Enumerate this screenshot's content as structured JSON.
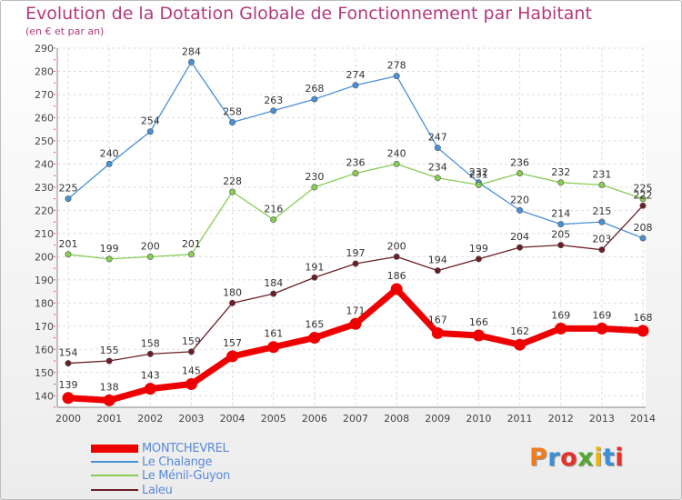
{
  "title": "Evolution de la Dotation Globale de Fonctionnement par Habitant",
  "subtitle": "(en € et par an)",
  "logo": {
    "text": "Proxiti",
    "colors": [
      "#f07c1e",
      "#3a8fd6",
      "#e3322c",
      "#54a832",
      "#f0b400",
      "#3a8fd6",
      "#e3322c"
    ]
  },
  "chart_data": {
    "type": "line",
    "x": [
      "2000",
      "2001",
      "2002",
      "2003",
      "2004",
      "2005",
      "2006",
      "2007",
      "2008",
      "2009",
      "2010",
      "2011",
      "2012",
      "2013",
      "2014"
    ],
    "ylim": [
      135,
      290
    ],
    "yticks": [
      140,
      150,
      160,
      170,
      180,
      190,
      200,
      210,
      220,
      230,
      240,
      250,
      260,
      270,
      280,
      290
    ],
    "grid": true,
    "legend_position": "bottom-left",
    "series": [
      {
        "name": "MONTCHEVREL",
        "color": "#ee0000",
        "values": [
          139,
          138,
          143,
          145,
          157,
          161,
          165,
          171,
          186,
          167,
          166,
          162,
          169,
          169,
          168
        ]
      },
      {
        "name": "Le Chalange",
        "color": "#4a90d6",
        "values": [
          225,
          240,
          254,
          284,
          258,
          263,
          268,
          274,
          278,
          247,
          232,
          220,
          214,
          215,
          208
        ]
      },
      {
        "name": "Le Ménil-Guyon",
        "color": "#88cc55",
        "values": [
          201,
          199,
          200,
          201,
          228,
          216,
          230,
          236,
          240,
          234,
          231,
          236,
          232,
          231,
          225
        ]
      },
      {
        "name": "Laleu",
        "color": "#6b1f24",
        "values": [
          154,
          155,
          158,
          159,
          180,
          184,
          191,
          197,
          200,
          194,
          199,
          204,
          205,
          203,
          222
        ]
      }
    ]
  }
}
